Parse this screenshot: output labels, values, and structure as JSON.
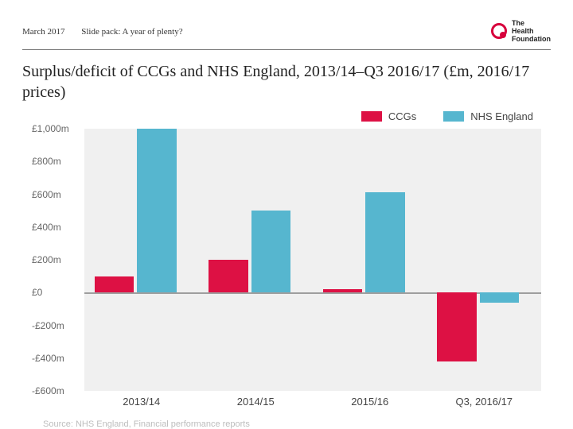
{
  "header": {
    "date": "March 2017",
    "pack": "Slide pack: A year of plenty?",
    "brand_lines": [
      "The",
      "Health",
      "Foundation"
    ],
    "brand_color": "#d7003c"
  },
  "title": "Surplus/deficit of CCGs and NHS England, 2013/14–Q3 2016/17 (£m, 2016/17 prices)",
  "chart": {
    "type": "bar",
    "background_color": "#ffffff",
    "plot_area_color": "#f0f0f0",
    "grid_color": "#e0e0e0",
    "zero_line_color": "#9e9e9e",
    "ylim": [
      -600,
      1000
    ],
    "ytick_step": 200,
    "yticks": [
      1000,
      800,
      600,
      400,
      200,
      0,
      -200,
      -400,
      -600
    ],
    "ytick_labels": [
      "£1,000m",
      "£800m",
      "£600m",
      "£400m",
      "£200m",
      "£0",
      "-£200m",
      "-£400m",
      "-£600m"
    ],
    "label_fontsize": 12,
    "categories": [
      "2013/14",
      "2014/15",
      "2015/16",
      "Q3, 2016/17"
    ],
    "series": [
      {
        "key": "ccgs",
        "label": "CCGs",
        "color": "#dd1144",
        "values": [
          100,
          200,
          20,
          -420
        ]
      },
      {
        "key": "nhs",
        "label": "NHS England",
        "color": "#56b6cf",
        "values": [
          1000,
          500,
          610,
          -60
        ]
      }
    ],
    "bar_width_ratio": 0.42,
    "group_gap_ratio": 0.18,
    "legend_fontsize": 13,
    "xlabel_fontsize": 13
  },
  "source": "Source: NHS England, Financial performance reports"
}
